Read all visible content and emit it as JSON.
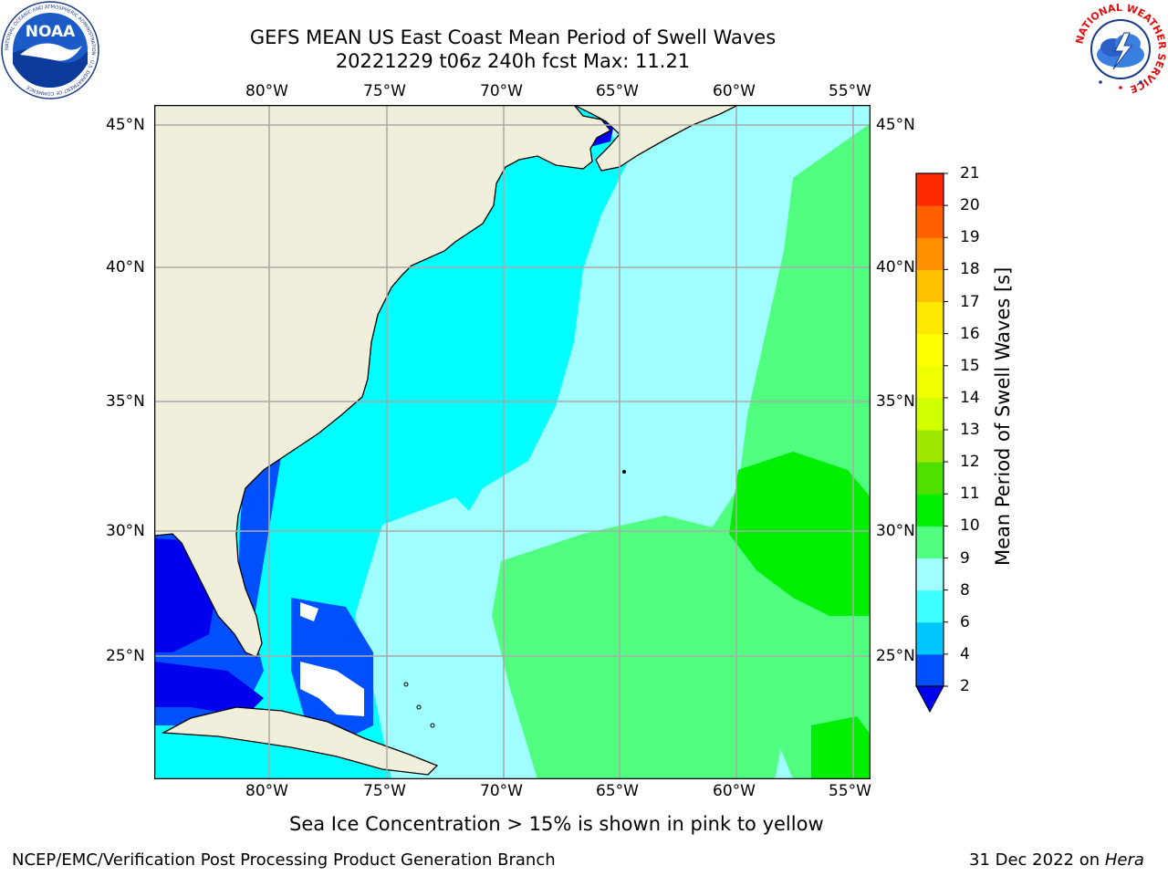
{
  "title": {
    "line1": "GEFS MEAN US East Coast Mean Period of Swell Waves",
    "line2": "20221229 t06z 240h fcst   Max: 11.21"
  },
  "map": {
    "lon_labels": [
      "80°W",
      "75°W",
      "70°W",
      "65°W",
      "60°W",
      "55°W"
    ],
    "lat_labels": [
      "45°N",
      "40°N",
      "35°N",
      "30°N",
      "25°N"
    ],
    "lon_range": [
      -85,
      -54.4
    ],
    "lat_range": [
      20.5,
      46
    ],
    "grid": true
  },
  "colorbar": {
    "title": "Mean Period of Swell Waves [s]",
    "ticks": [
      "2",
      "4",
      "6",
      "8",
      "9",
      "10",
      "11",
      "12",
      "13",
      "14",
      "15",
      "16",
      "17",
      "18",
      "19",
      "20",
      "21"
    ],
    "colors": [
      "#0050ff",
      "#00c8ff",
      "#40ffff",
      "#a0ffff",
      "#50ff80",
      "#00ee00",
      "#50e000",
      "#a0e800",
      "#d0ff00",
      "#f0ff00",
      "#ffff00",
      "#ffe800",
      "#ffc000",
      "#ff9000",
      "#ff6000",
      "#ff2a00",
      "#ff0000"
    ],
    "extend_color": "#0000ee"
  },
  "note": "Sea Ice Concentration > 15% is shown in pink to yellow",
  "footer": {
    "left": "NCEP/EMC/Verification Post Processing Product Generation Branch",
    "right_prefix": "31 Dec 2022 on ",
    "right_host": "Hera"
  },
  "logos": {
    "noaa_text": "NOAA",
    "noaa_ring": "NATIONAL OCEANIC AND ATMOSPHERIC ADMINISTRATION · U.S. DEPARTMENT OF COMMERCE",
    "nws_ring": "NATIONAL WEATHER SERVICE"
  }
}
